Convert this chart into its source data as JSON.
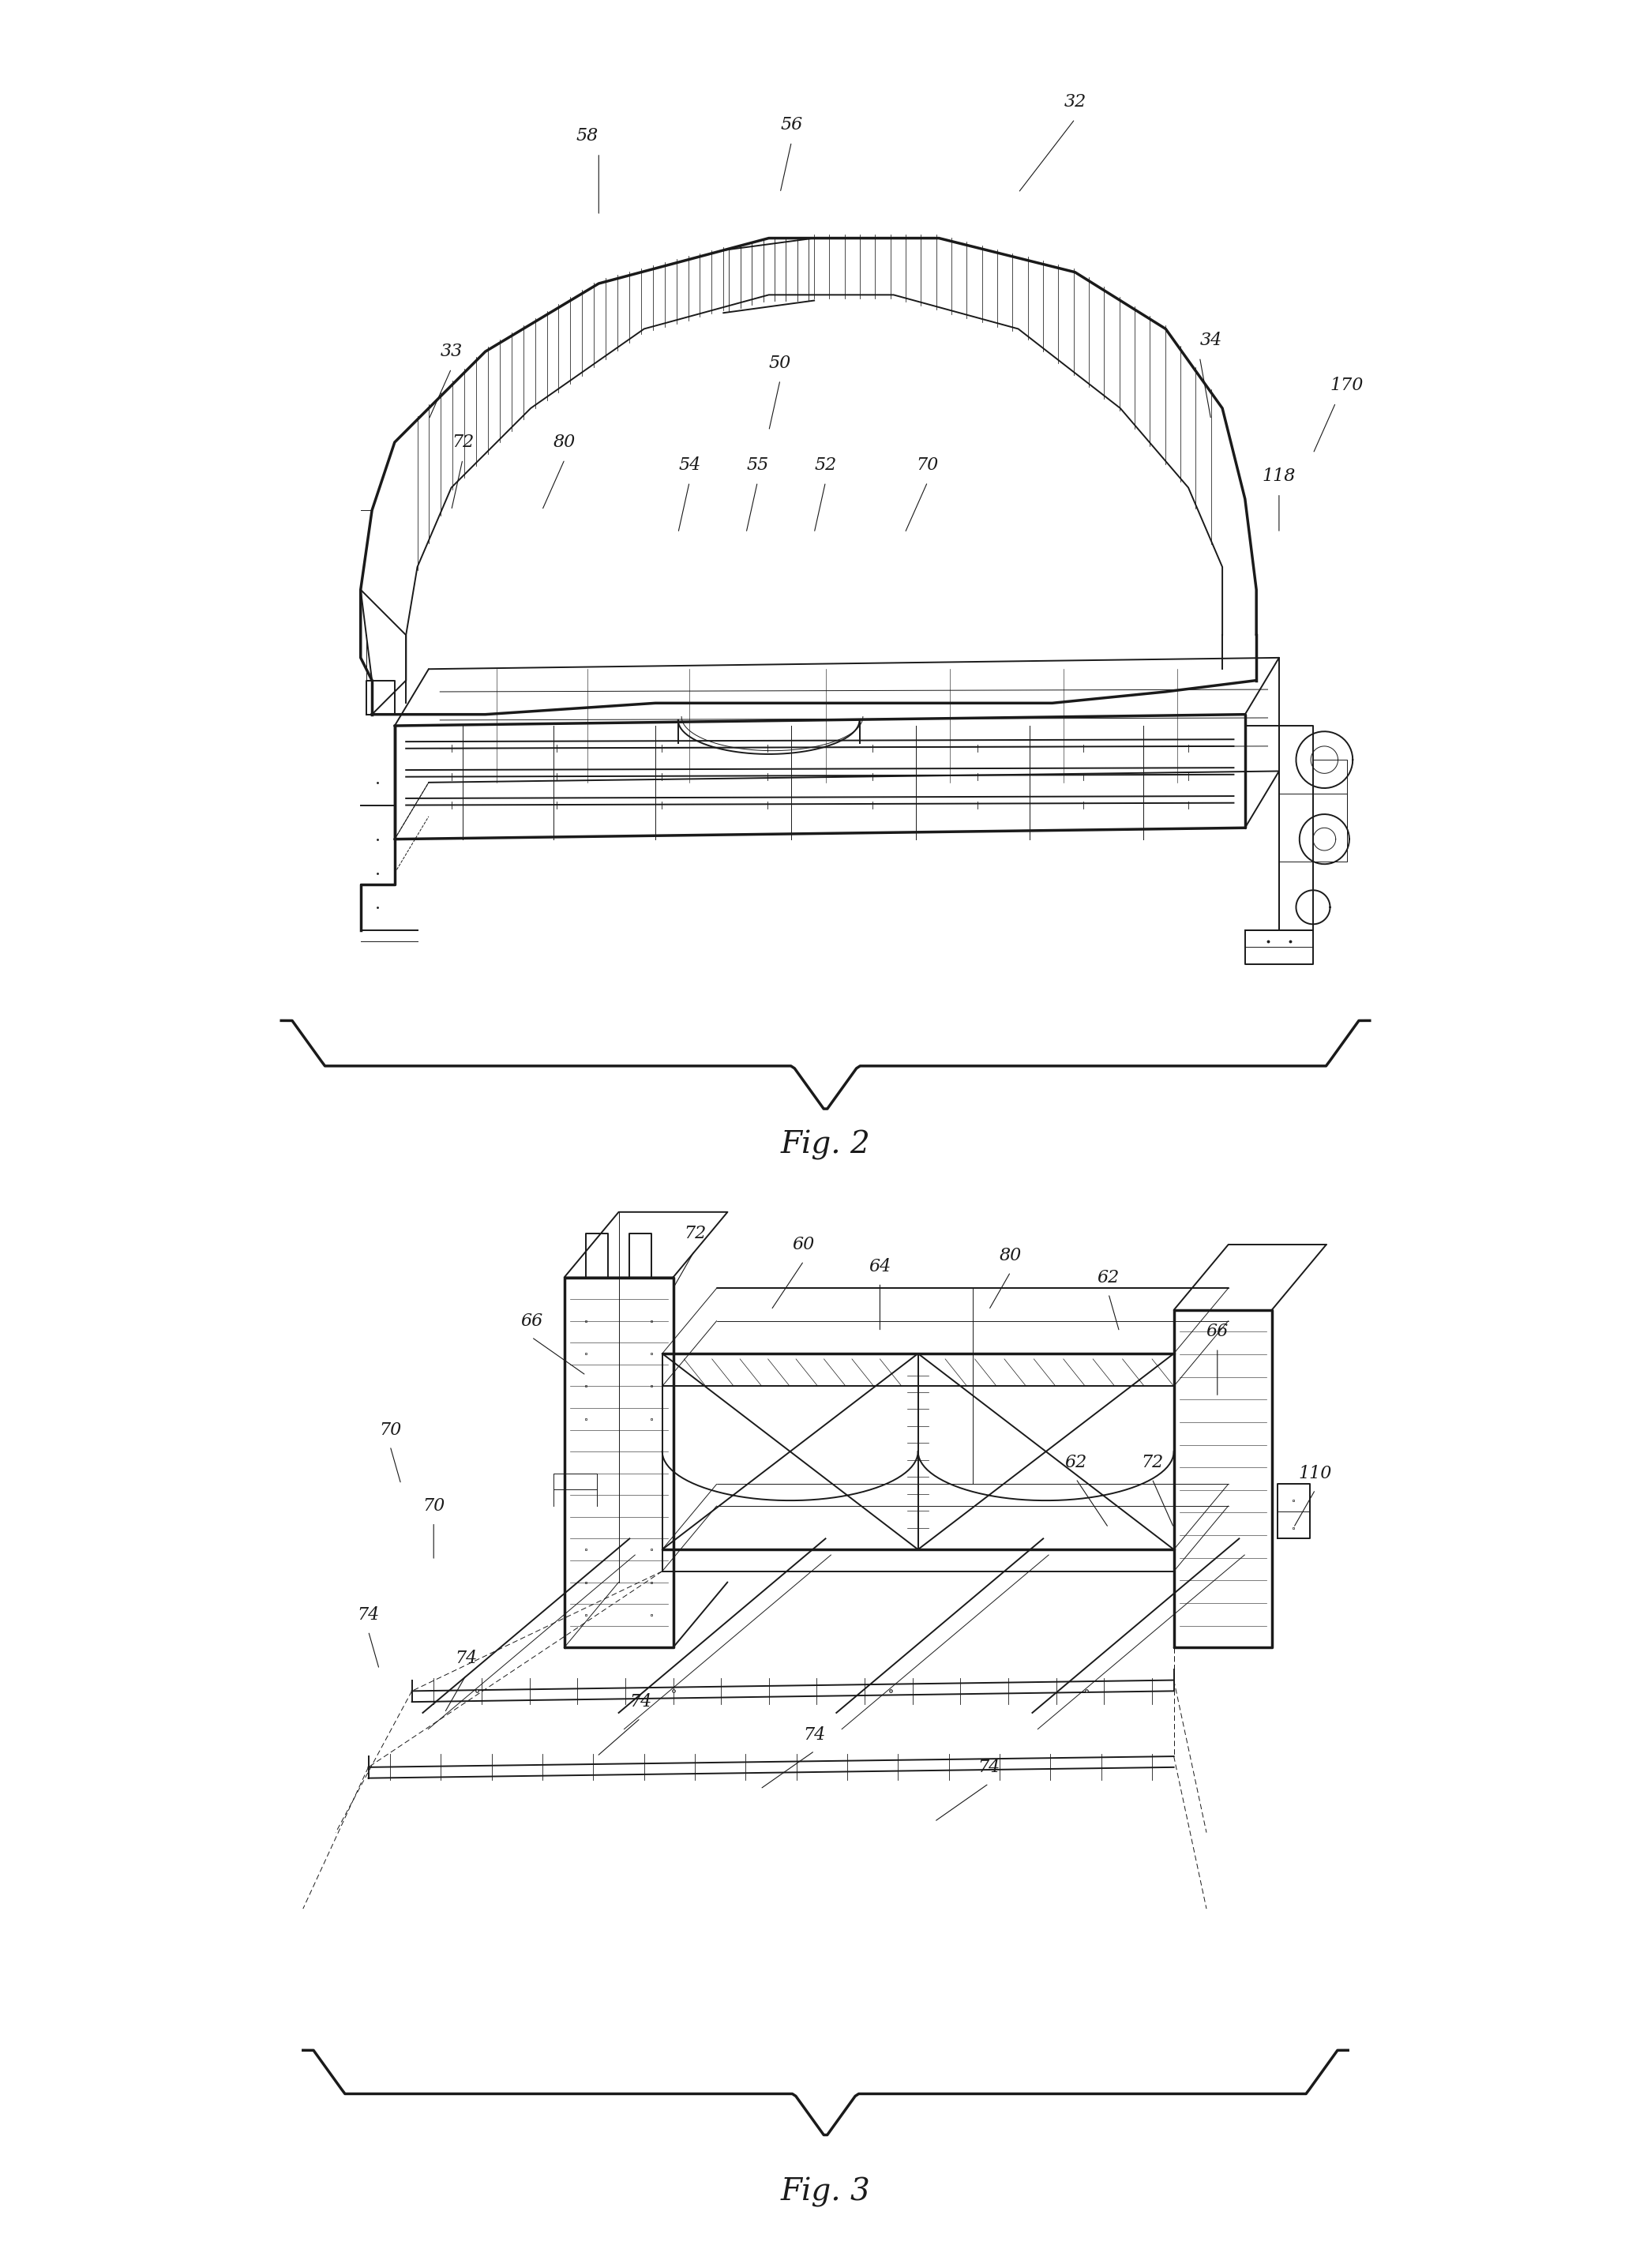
{
  "bg_color": "#ffffff",
  "line_color": "#1a1a1a",
  "fig2_title": "Fig. 2",
  "fig3_title": "Fig. 3",
  "page_width": 20.91,
  "page_height": 28.72,
  "label_fontsize": 16,
  "title_fontsize": 28,
  "lw_thin": 0.7,
  "lw_med": 1.4,
  "lw_thick": 2.5
}
